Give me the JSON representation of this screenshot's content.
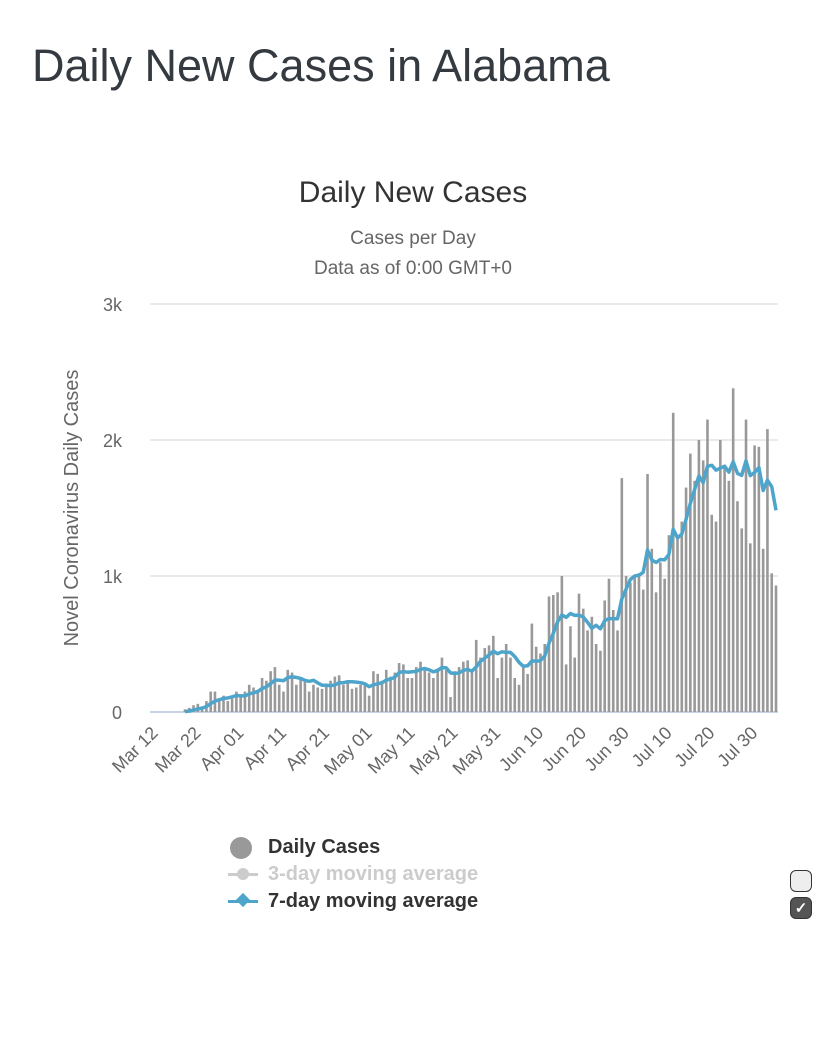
{
  "page_title": "Daily New Cases in Alabama",
  "chart_data": {
    "type": "bar",
    "title": "Daily New Cases",
    "subtitle_line1": "Cases per Day",
    "subtitle_line2": "Data as of 0:00 GMT+0",
    "xlabel": "",
    "ylabel": "Novel Coronavirus Daily Cases",
    "ylim": [
      0,
      3000
    ],
    "y_ticks": [
      "0",
      "1k",
      "2k",
      "3k"
    ],
    "x_start": "Mar 12",
    "x_tick_labels": [
      "Mar 12",
      "Mar 22",
      "Apr 01",
      "Apr 11",
      "Apr 21",
      "May 01",
      "May 11",
      "May 21",
      "May 31",
      "Jun 10",
      "Jun 20",
      "Jun 30",
      "Jul 10",
      "Jul 20",
      "Jul 30"
    ],
    "grid": true,
    "series": [
      {
        "name": "Daily Cases",
        "type": "bar",
        "color": "#999999",
        "values": [
          0,
          0,
          0,
          0,
          0,
          0,
          0,
          20,
          30,
          50,
          60,
          40,
          80,
          150,
          150,
          100,
          120,
          80,
          100,
          150,
          130,
          150,
          200,
          180,
          150,
          250,
          230,
          300,
          330,
          200,
          150,
          310,
          290,
          200,
          250,
          230,
          150,
          200,
          180,
          170,
          200,
          230,
          260,
          270,
          200,
          230,
          170,
          180,
          200,
          200,
          120,
          300,
          280,
          230,
          310,
          260,
          290,
          360,
          350,
          250,
          250,
          330,
          370,
          330,
          290,
          250,
          320,
          400,
          310,
          110,
          300,
          330,
          370,
          380,
          300,
          530,
          400,
          470,
          490,
          560,
          250,
          400,
          500,
          400,
          250,
          200,
          350,
          280,
          650,
          480,
          430,
          500,
          850,
          860,
          880,
          1000,
          350,
          630,
          400,
          870,
          760,
          600,
          700,
          500,
          450,
          820,
          980,
          750,
          600,
          1720,
          1000,
          950,
          1000,
          1020,
          900,
          1750,
          1200,
          880,
          1100,
          980,
          1300,
          2200,
          1300,
          1400,
          1650,
          1900,
          1700,
          2000,
          1850,
          2150,
          1450,
          1400,
          2000,
          1800,
          1700,
          2380,
          1550,
          1350,
          2150,
          1240,
          1960,
          1950,
          1200,
          2080,
          1020,
          930
        ]
      },
      {
        "name": "3-day moving average",
        "type": "line",
        "color": "#cccccc",
        "visible": false
      },
      {
        "name": "7-day moving average",
        "type": "line",
        "color": "#4ea5cc",
        "visible": true
      }
    ],
    "legend_position": "bottom"
  },
  "legend": {
    "checkbox_3day": false,
    "checkbox_7day": true,
    "check_mark": "✓"
  }
}
